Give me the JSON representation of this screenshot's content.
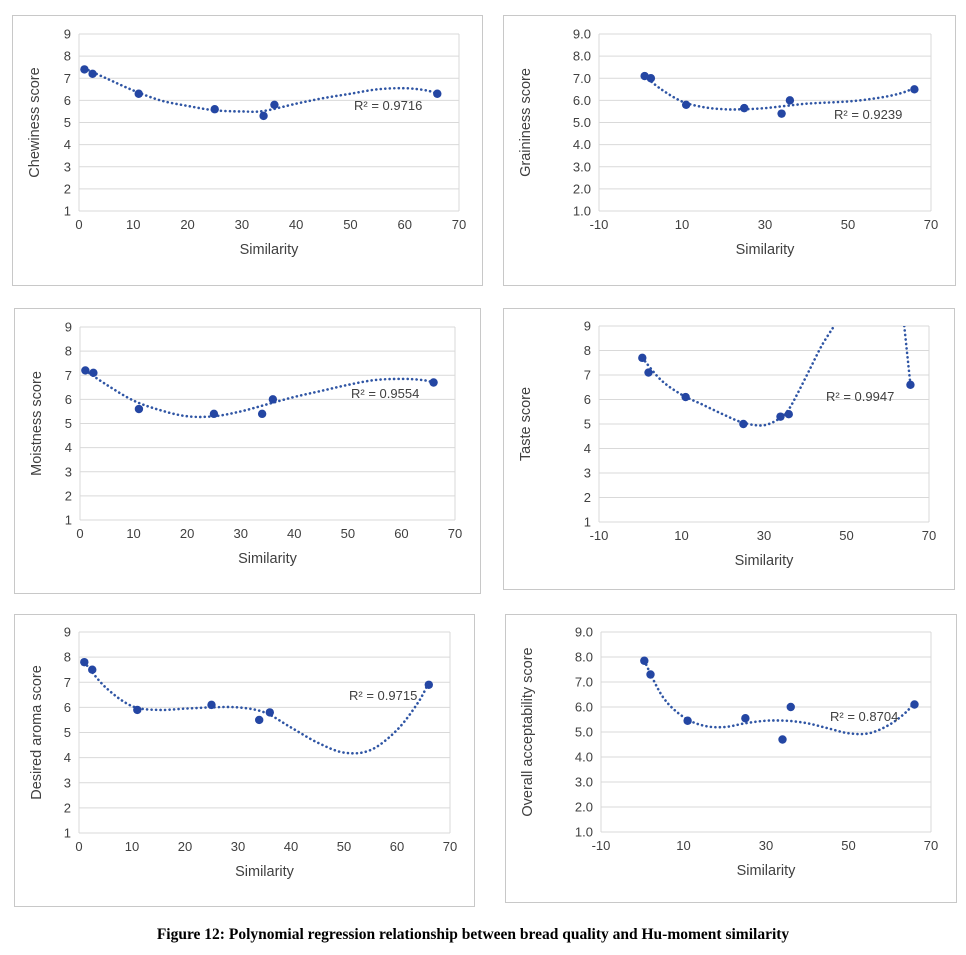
{
  "figure_caption": "Figure 12: Polynomial regression relationship between bread quality and Hu-moment similarity",
  "colors": {
    "marker": "#2446a3",
    "trend": "#2f55a4",
    "grid": "#d9d9d9",
    "text": "#404040"
  },
  "chart_data": [
    {
      "type": "scatter",
      "ylabel": "Chewiness score",
      "xlabel": "Similarity",
      "r_squared": "R² = 0.9716",
      "xlim": [
        0,
        70
      ],
      "ylim": [
        1,
        9
      ],
      "x_ticks": [
        "0",
        "10",
        "20",
        "30",
        "40",
        "50",
        "60",
        "70"
      ],
      "y_ticks": [
        "1",
        "2",
        "3",
        "4",
        "5",
        "6",
        "7",
        "8",
        "9"
      ],
      "points": {
        "x": [
          1,
          2.5,
          11,
          25,
          34,
          36,
          66
        ],
        "y": [
          7.4,
          7.2,
          6.3,
          5.6,
          5.3,
          5.8,
          6.3
        ]
      },
      "trendline": {
        "style": "dotted",
        "x": [
          1,
          5,
          10,
          15,
          20,
          25,
          30,
          34,
          40,
          45,
          50,
          55,
          60,
          64,
          66
        ],
        "y": [
          7.45,
          7.0,
          6.45,
          6.0,
          5.75,
          5.55,
          5.5,
          5.52,
          5.85,
          6.1,
          6.3,
          6.5,
          6.55,
          6.45,
          6.3
        ]
      },
      "grid": true
    },
    {
      "type": "scatter",
      "ylabel": "Graininess score",
      "xlabel": "Similarity",
      "r_squared": "R² = 0.9239",
      "xlim": [
        -10,
        70
      ],
      "ylim": [
        1,
        9
      ],
      "x_ticks": [
        "-10",
        "10",
        "30",
        "50",
        "70"
      ],
      "y_ticks": [
        "1.0",
        "2.0",
        "3.0",
        "4.0",
        "5.0",
        "6.0",
        "7.0",
        "8.0",
        "9.0"
      ],
      "points": {
        "x": [
          1,
          2.5,
          11,
          25,
          34,
          36,
          66
        ],
        "y": [
          7.1,
          7.0,
          5.8,
          5.65,
          5.4,
          6.0,
          6.5
        ]
      },
      "trendline": {
        "style": "dotted",
        "x": [
          1,
          5,
          10,
          15,
          20,
          25,
          30,
          35,
          40,
          45,
          50,
          55,
          60,
          64,
          66
        ],
        "y": [
          7.1,
          6.5,
          5.95,
          5.7,
          5.6,
          5.6,
          5.65,
          5.75,
          5.85,
          5.9,
          5.95,
          6.05,
          6.2,
          6.4,
          6.6
        ]
      },
      "grid": true
    },
    {
      "type": "scatter",
      "ylabel": "Moistness score",
      "xlabel": "Similarity",
      "r_squared": "R² = 0.9554",
      "xlim": [
        0,
        70
      ],
      "ylim": [
        1,
        9
      ],
      "x_ticks": [
        "0",
        "10",
        "20",
        "30",
        "40",
        "50",
        "60",
        "70"
      ],
      "y_ticks": [
        "1",
        "2",
        "3",
        "4",
        "5",
        "6",
        "7",
        "8",
        "9"
      ],
      "points": {
        "x": [
          1,
          2.5,
          11,
          25,
          34,
          36,
          66
        ],
        "y": [
          7.2,
          7.1,
          5.6,
          5.4,
          5.4,
          6.0,
          6.7
        ]
      },
      "trendline": {
        "style": "dotted",
        "x": [
          1,
          5,
          10,
          15,
          20,
          25,
          30,
          35,
          40,
          45,
          50,
          55,
          60,
          64,
          66
        ],
        "y": [
          7.2,
          6.6,
          5.95,
          5.55,
          5.3,
          5.3,
          5.5,
          5.8,
          6.1,
          6.35,
          6.6,
          6.8,
          6.85,
          6.8,
          6.7
        ]
      },
      "grid": true
    },
    {
      "type": "scatter",
      "ylabel": "Taste score",
      "xlabel": "Similarity",
      "r_squared": "R² = 0.9947",
      "xlim": [
        -10,
        70
      ],
      "ylim": [
        1,
        9
      ],
      "x_ticks": [
        "-10",
        "10",
        "30",
        "50",
        "70"
      ],
      "y_ticks": [
        "1",
        "2",
        "3",
        "4",
        "5",
        "6",
        "7",
        "8",
        "9"
      ],
      "points": {
        "x": [
          0.5,
          2,
          11,
          25,
          34,
          36,
          65.5
        ],
        "y": [
          7.7,
          7.1,
          6.1,
          5.0,
          5.3,
          5.4,
          6.6
        ]
      },
      "trendline": {
        "style": "dotted",
        "segments": [
          {
            "x": [
              0.5,
              5,
              10,
              15,
              20,
              25,
              30,
              34,
              36,
              38,
              41,
              44,
              47
            ],
            "y": [
              7.7,
              6.8,
              6.2,
              5.8,
              5.4,
              5.05,
              4.95,
              5.25,
              5.6,
              6.2,
              7.2,
              8.2,
              9.0
            ]
          },
          {
            "x": [
              64,
              64.5,
              65,
              65.5
            ],
            "y": [
              9.0,
              8.2,
              7.4,
              6.6
            ]
          }
        ]
      },
      "grid": true
    },
    {
      "type": "scatter",
      "ylabel": "Desired aroma score",
      "xlabel": "Similarity",
      "r_squared": "R² = 0.9715",
      "xlim": [
        0,
        70
      ],
      "ylim": [
        1,
        9
      ],
      "x_ticks": [
        "0",
        "10",
        "20",
        "30",
        "40",
        "50",
        "60",
        "70"
      ],
      "y_ticks": [
        "1",
        "2",
        "3",
        "4",
        "5",
        "6",
        "7",
        "8",
        "9"
      ],
      "points": {
        "x": [
          1,
          2.5,
          11,
          25,
          34,
          36,
          66
        ],
        "y": [
          7.8,
          7.5,
          5.9,
          6.1,
          5.5,
          5.8,
          6.9
        ]
      },
      "trendline": {
        "style": "dotted",
        "x": [
          1,
          5,
          10,
          15,
          20,
          25,
          30,
          35,
          40,
          45,
          50,
          55,
          60,
          64,
          66
        ],
        "y": [
          7.8,
          6.8,
          6.05,
          5.9,
          5.95,
          6.0,
          6.0,
          5.8,
          5.2,
          4.6,
          4.2,
          4.3,
          5.1,
          6.2,
          7.0
        ]
      },
      "grid": true
    },
    {
      "type": "scatter",
      "ylabel": "Overall acceptability score",
      "xlabel": "Similarity",
      "r_squared": "R² = 0.8704",
      "xlim": [
        -10,
        70
      ],
      "ylim": [
        1,
        9
      ],
      "x_ticks": [
        "-10",
        "10",
        "30",
        "50",
        "70"
      ],
      "y_ticks": [
        "1.0",
        "2.0",
        "3.0",
        "4.0",
        "5.0",
        "6.0",
        "7.0",
        "8.0",
        "9.0"
      ],
      "points": {
        "x": [
          0.5,
          2,
          11,
          25,
          34,
          36,
          66
        ],
        "y": [
          7.85,
          7.3,
          5.45,
          5.55,
          4.7,
          6.0,
          6.1
        ]
      },
      "trendline": {
        "style": "dotted",
        "x": [
          0.5,
          5,
          10,
          15,
          20,
          25,
          30,
          35,
          40,
          45,
          50,
          55,
          60,
          64,
          66
        ],
        "y": [
          7.85,
          6.4,
          5.6,
          5.25,
          5.2,
          5.35,
          5.45,
          5.45,
          5.35,
          5.15,
          4.95,
          4.95,
          5.3,
          5.8,
          6.2
        ]
      },
      "grid": true
    }
  ]
}
